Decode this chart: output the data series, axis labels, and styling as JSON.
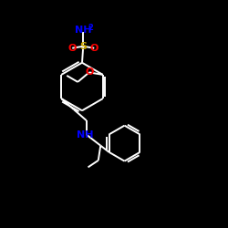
{
  "bg_color": "#000000",
  "bond_color": "#ffffff",
  "atom_colors": {
    "O": "#ff0000",
    "S": "#ccaa00",
    "NH2": "#0000ff",
    "NH": "#0000ff"
  },
  "figsize": [
    2.5,
    2.5
  ],
  "dpi": 100,
  "lw": 1.4
}
